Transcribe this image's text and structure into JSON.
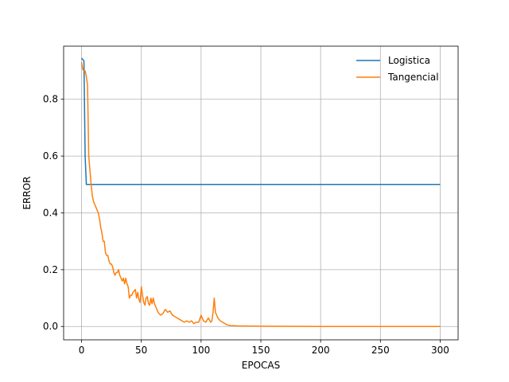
{
  "chart_data": {
    "type": "line",
    "title": "",
    "xlabel": "EPOCAS",
    "ylabel": "ERROR",
    "xlim": [
      -15,
      315
    ],
    "ylim": [
      -0.047,
      0.987
    ],
    "xticks": [
      0,
      50,
      100,
      150,
      200,
      250,
      300
    ],
    "yticks": [
      0.0,
      0.2,
      0.4,
      0.6,
      0.8
    ],
    "ytick_labels": [
      "0.0",
      "0.2",
      "0.4",
      "0.6",
      "0.8"
    ],
    "grid": true,
    "legend_position": "top-right",
    "series": [
      {
        "name": "Logistica",
        "color": "#1f77b4",
        "x": [
          0,
          1,
          2,
          3,
          4,
          5,
          10,
          50,
          100,
          150,
          200,
          250,
          300
        ],
        "y": [
          0.945,
          0.94,
          0.935,
          0.6,
          0.5,
          0.5,
          0.5,
          0.5,
          0.5,
          0.5,
          0.5,
          0.5,
          0.5
        ]
      },
      {
        "name": "Tangencial",
        "color": "#ff7f0e",
        "x": [
          0,
          1,
          2,
          3,
          4,
          5,
          6,
          7,
          8,
          9,
          10,
          11,
          12,
          13,
          14,
          15,
          16,
          17,
          18,
          19,
          20,
          21,
          22,
          23,
          24,
          25,
          26,
          27,
          28,
          29,
          30,
          31,
          32,
          33,
          34,
          35,
          36,
          37,
          38,
          39,
          40,
          41,
          42,
          43,
          44,
          45,
          46,
          47,
          48,
          49,
          50,
          51,
          52,
          53,
          54,
          55,
          56,
          57,
          58,
          59,
          60,
          61,
          62,
          63,
          64,
          65,
          66,
          68,
          70,
          72,
          74,
          76,
          78,
          80,
          82,
          84,
          86,
          88,
          90,
          92,
          94,
          96,
          98,
          100,
          102,
          104,
          106,
          108,
          109,
          110,
          111,
          112,
          114,
          116,
          118,
          120,
          122,
          125,
          130,
          150,
          200,
          250,
          300
        ],
        "y": [
          0.93,
          0.905,
          0.9,
          0.9,
          0.88,
          0.85,
          0.6,
          0.55,
          0.5,
          0.46,
          0.44,
          0.43,
          0.42,
          0.41,
          0.4,
          0.38,
          0.35,
          0.33,
          0.3,
          0.3,
          0.26,
          0.25,
          0.25,
          0.23,
          0.22,
          0.22,
          0.21,
          0.19,
          0.18,
          0.19,
          0.19,
          0.2,
          0.18,
          0.17,
          0.16,
          0.17,
          0.15,
          0.17,
          0.15,
          0.14,
          0.1,
          0.11,
          0.11,
          0.12,
          0.125,
          0.13,
          0.1,
          0.12,
          0.095,
          0.085,
          0.14,
          0.11,
          0.085,
          0.075,
          0.1,
          0.105,
          0.08,
          0.075,
          0.1,
          0.08,
          0.1,
          0.08,
          0.07,
          0.06,
          0.05,
          0.045,
          0.04,
          0.045,
          0.06,
          0.05,
          0.055,
          0.04,
          0.035,
          0.03,
          0.025,
          0.02,
          0.015,
          0.02,
          0.015,
          0.02,
          0.01,
          0.015,
          0.015,
          0.04,
          0.02,
          0.015,
          0.03,
          0.015,
          0.02,
          0.05,
          0.1,
          0.05,
          0.03,
          0.02,
          0.015,
          0.01,
          0.005,
          0.003,
          0.002,
          0.001,
          0.0,
          0.0,
          0.0
        ]
      }
    ]
  }
}
